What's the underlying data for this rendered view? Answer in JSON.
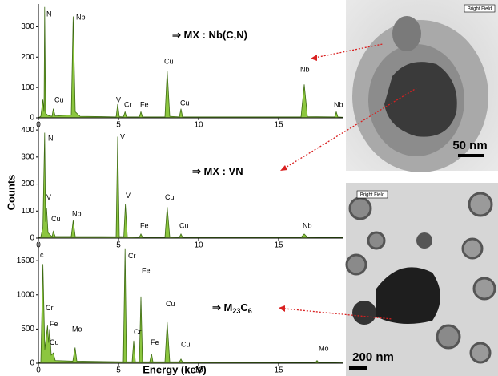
{
  "chart_data": [
    {
      "type": "area",
      "color": "#8cc63f",
      "x": [
        0,
        0.15,
        0.28,
        0.35,
        0.39,
        0.45,
        0.6,
        0.85,
        0.93,
        1.05,
        1.5,
        2.05,
        2.17,
        2.3,
        2.6,
        4.85,
        4.95,
        5.05,
        5.3,
        5.41,
        5.5,
        6.3,
        6.4,
        6.5,
        7.9,
        8.04,
        8.2,
        8.8,
        8.9,
        9.0,
        16.4,
        16.6,
        16.8,
        18.5,
        18.6,
        18.7,
        19
      ],
      "values": [
        0,
        5,
        60,
        20,
        365,
        15,
        8,
        5,
        30,
        6,
        8,
        10,
        334,
        20,
        5,
        3,
        45,
        4,
        3,
        20,
        3,
        3,
        20,
        3,
        3,
        155,
        5,
        3,
        30,
        3,
        3,
        110,
        4,
        3,
        20,
        3,
        2
      ],
      "xlim": [
        0,
        19
      ],
      "ylim": [
        0,
        375
      ],
      "xticks": [
        0,
        5,
        10,
        15
      ],
      "yticks": [
        0,
        100,
        200,
        300
      ],
      "annotations": [
        {
          "text": "N",
          "x": 0.5,
          "y": 340
        },
        {
          "text": "Nb",
          "x": 2.35,
          "y": 330
        },
        {
          "text": "Cu",
          "x": 1.0,
          "y": 58
        },
        {
          "text": "V",
          "x": 4.85,
          "y": 58
        },
        {
          "text": "Cr",
          "x": 5.35,
          "y": 42
        },
        {
          "text": "Fe",
          "x": 6.35,
          "y": 42
        },
        {
          "text": "Cu",
          "x": 7.85,
          "y": 185
        },
        {
          "text": "Cu",
          "x": 8.85,
          "y": 47
        },
        {
          "text": "Nb",
          "x": 16.35,
          "y": 158
        },
        {
          "text": "Nb",
          "x": 18.45,
          "y": 42
        }
      ]
    },
    {
      "type": "area",
      "color": "#8cc63f",
      "x": [
        0,
        0.15,
        0.28,
        0.39,
        0.45,
        0.51,
        0.6,
        0.85,
        0.93,
        1.05,
        2.05,
        2.17,
        2.3,
        4.85,
        4.95,
        5.05,
        5.33,
        5.43,
        5.55,
        6.3,
        6.4,
        6.5,
        7.9,
        8.04,
        8.2,
        8.8,
        8.9,
        9.0,
        16.4,
        16.6,
        16.8,
        19
      ],
      "values": [
        0,
        5,
        40,
        390,
        60,
        110,
        20,
        5,
        25,
        6,
        6,
        65,
        6,
        5,
        375,
        6,
        5,
        125,
        5,
        3,
        15,
        3,
        3,
        115,
        4,
        3,
        15,
        3,
        3,
        15,
        3,
        2
      ],
      "xlim": [
        0,
        19
      ],
      "ylim": [
        0,
        430
      ],
      "xticks": [
        0,
        5,
        10,
        15
      ],
      "yticks": [
        0,
        100,
        200,
        300,
        400
      ],
      "annotations": [
        {
          "text": "N",
          "x": 0.6,
          "y": 368
        },
        {
          "text": "V",
          "x": 0.5,
          "y": 150
        },
        {
          "text": "Cu",
          "x": 0.8,
          "y": 70
        },
        {
          "text": "Nb",
          "x": 2.1,
          "y": 88
        },
        {
          "text": "V",
          "x": 5.1,
          "y": 373
        },
        {
          "text": "V",
          "x": 5.45,
          "y": 156
        },
        {
          "text": "Fe",
          "x": 6.35,
          "y": 44
        },
        {
          "text": "Cu",
          "x": 7.9,
          "y": 150
        },
        {
          "text": "Cu",
          "x": 8.8,
          "y": 44
        },
        {
          "text": "Nb",
          "x": 16.5,
          "y": 44
        }
      ]
    },
    {
      "type": "area",
      "color": "#8cc63f",
      "x": [
        0,
        0.15,
        0.28,
        0.4,
        0.57,
        0.64,
        0.7,
        0.8,
        0.93,
        1.05,
        2.15,
        2.29,
        2.4,
        5.3,
        5.41,
        5.5,
        5.85,
        5.95,
        6.05,
        6.3,
        6.4,
        6.5,
        6.95,
        7.06,
        7.15,
        7.9,
        8.04,
        8.2,
        8.8,
        8.9,
        9.0,
        17.3,
        17.4,
        17.5,
        19
      ],
      "values": [
        0,
        20,
        1450,
        200,
        550,
        300,
        500,
        120,
        150,
        40,
        30,
        230,
        30,
        20,
        1680,
        20,
        20,
        330,
        20,
        20,
        975,
        20,
        20,
        140,
        20,
        20,
        600,
        20,
        20,
        60,
        15,
        10,
        40,
        10,
        5
      ],
      "xlim": [
        0,
        19
      ],
      "ylim": [
        0,
        1760
      ],
      "xticks": [
        0,
        5,
        10,
        15
      ],
      "yticks": [
        0,
        500,
        1000,
        1500
      ],
      "annotations": [
        {
          "text": "c",
          "x": 0.1,
          "y": 1575
        },
        {
          "text": "Cr",
          "x": 0.45,
          "y": 800
        },
        {
          "text": "Fe",
          "x": 0.7,
          "y": 565
        },
        {
          "text": "Cu",
          "x": 0.7,
          "y": 295
        },
        {
          "text": "Mo",
          "x": 2.1,
          "y": 490
        },
        {
          "text": "Cr",
          "x": 5.6,
          "y": 1565
        },
        {
          "text": "Cr",
          "x": 5.95,
          "y": 450
        },
        {
          "text": "Fe",
          "x": 6.45,
          "y": 1345
        },
        {
          "text": "Fe",
          "x": 7.0,
          "y": 295
        },
        {
          "text": "Cu",
          "x": 7.95,
          "y": 860
        },
        {
          "text": "Cu",
          "x": 8.9,
          "y": 270
        },
        {
          "text": "Mo",
          "x": 17.5,
          "y": 210
        }
      ]
    }
  ],
  "figure": {
    "y_label": "Counts",
    "x_label": "Energy (keV)",
    "phase_labels": [
      {
        "parts": [
          "⇒ MX : Nb(C,N)"
        ]
      },
      {
        "parts": [
          "⇒ MX : VN"
        ]
      },
      {
        "parts": [
          "⇒ M",
          "23",
          "C",
          "6"
        ]
      }
    ],
    "images": [
      {
        "tag": "Bright Field",
        "scale": "50 nm"
      },
      {
        "tag": "Bright Field",
        "scale": "200 nm"
      }
    ]
  }
}
